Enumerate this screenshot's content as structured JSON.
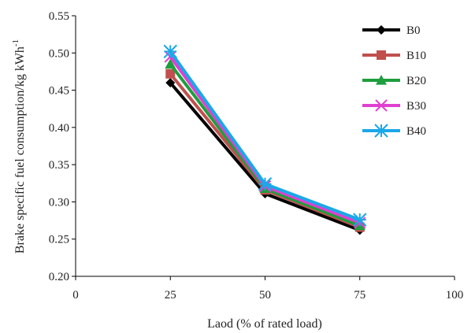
{
  "chart_data": {
    "type": "line",
    "xlabel": "Laod (% of rated load)",
    "ylabel": "Brake specific fuel consumption/kg kWh",
    "ylabel_sup": "-1",
    "xlim": [
      0,
      100
    ],
    "ylim": [
      0.2,
      0.55
    ],
    "x_ticks": [
      "0",
      "25",
      "50",
      "75",
      "100"
    ],
    "y_ticks": [
      "0.20",
      "0.25",
      "0.30",
      "0.35",
      "0.40",
      "0.45",
      "0.50",
      "0.55"
    ],
    "x": [
      25,
      50,
      75
    ],
    "series": [
      {
        "name": "B0",
        "values": [
          0.46,
          0.311,
          0.262
        ],
        "color": "#000000",
        "marker": "diamond"
      },
      {
        "name": "B10",
        "values": [
          0.472,
          0.316,
          0.266
        ],
        "color": "#c0504d",
        "marker": "square"
      },
      {
        "name": "B20",
        "values": [
          0.485,
          0.318,
          0.268
        ],
        "color": "#1e9e3e",
        "marker": "triangle"
      },
      {
        "name": "B30",
        "values": [
          0.495,
          0.321,
          0.272
        ],
        "color": "#e040d0",
        "marker": "x"
      },
      {
        "name": "B40",
        "values": [
          0.502,
          0.324,
          0.276
        ],
        "color": "#1aa8e8",
        "marker": "asterisk"
      }
    ],
    "legend": "top-right",
    "grid": false
  }
}
